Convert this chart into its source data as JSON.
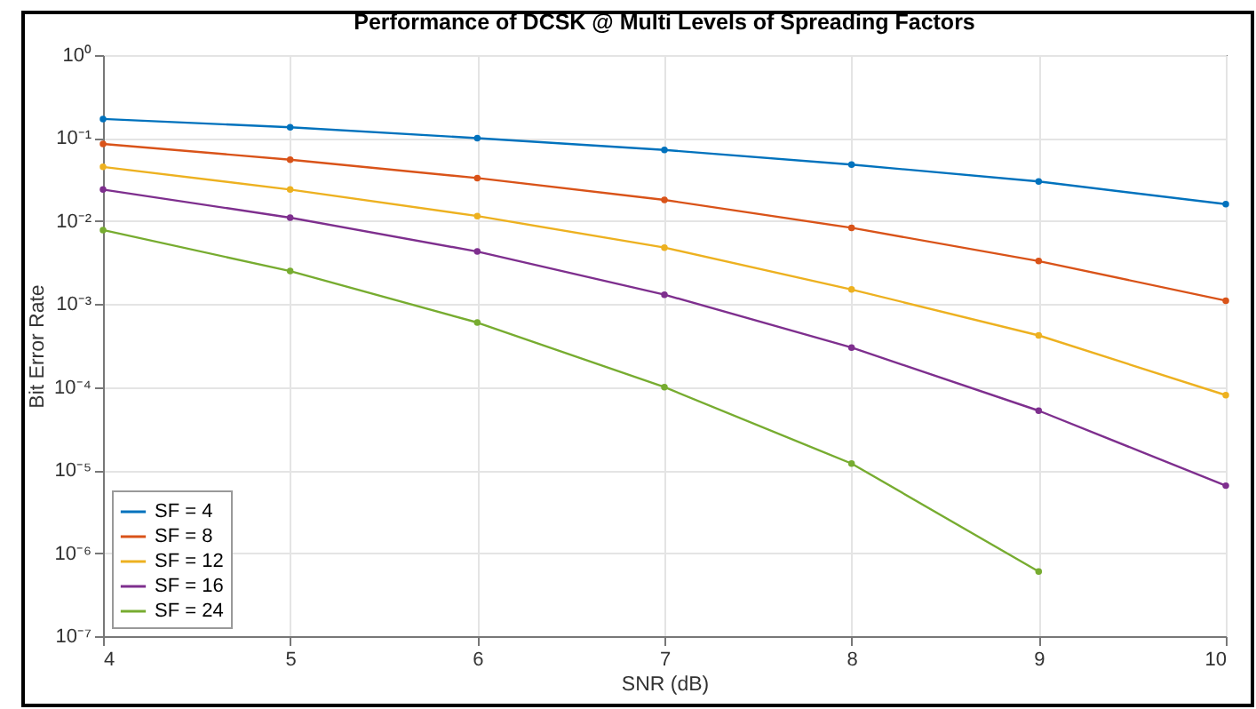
{
  "chart_data": {
    "type": "line",
    "title": "Performance of DCSK @ Multi Levels of Spreading Factors",
    "xlabel": "SNR (dB)",
    "ylabel": "Bit Error Rate",
    "x": [
      4,
      5,
      6,
      7,
      8,
      9,
      10
    ],
    "series": [
      {
        "name": "SF = 4",
        "color": "#0072bd",
        "values": [
          0.17,
          0.135,
          0.1,
          0.072,
          0.048,
          0.03,
          0.016
        ]
      },
      {
        "name": "SF = 8",
        "color": "#d95319",
        "values": [
          0.085,
          0.055,
          0.033,
          0.018,
          0.0083,
          0.0033,
          0.0011
        ]
      },
      {
        "name": "SF = 12",
        "color": "#edb120",
        "values": [
          0.045,
          0.024,
          0.0115,
          0.0048,
          0.0015,
          0.00042,
          8e-05
        ]
      },
      {
        "name": "SF = 16",
        "color": "#7e2f8e",
        "values": [
          0.024,
          0.011,
          0.0043,
          0.0013,
          0.0003,
          5.2e-05,
          6.5e-06
        ]
      },
      {
        "name": "SF = 24",
        "color": "#77ac30",
        "values": [
          0.0078,
          0.0025,
          0.0006,
          0.0001,
          1.2e-05,
          6e-07,
          null
        ]
      }
    ],
    "xlim": [
      4,
      10
    ],
    "xticks": [
      4,
      5,
      6,
      7,
      8,
      9,
      10
    ],
    "ylim": [
      1e-07,
      1
    ],
    "yticks": [
      {
        "value": 1,
        "label": "10⁰"
      },
      {
        "value": 0.1,
        "label": "10⁻¹"
      },
      {
        "value": 0.01,
        "label": "10⁻²"
      },
      {
        "value": 0.001,
        "label": "10⁻³"
      },
      {
        "value": 0.0001,
        "label": "10⁻⁴"
      },
      {
        "value": 1e-05,
        "label": "10⁻⁵"
      },
      {
        "value": 1e-06,
        "label": "10⁻⁶"
      },
      {
        "value": 1e-07,
        "label": "10⁻⁷"
      }
    ],
    "log": "y",
    "grid": true,
    "legend": "bottom left",
    "marker": "circle",
    "line_style": "solid"
  }
}
